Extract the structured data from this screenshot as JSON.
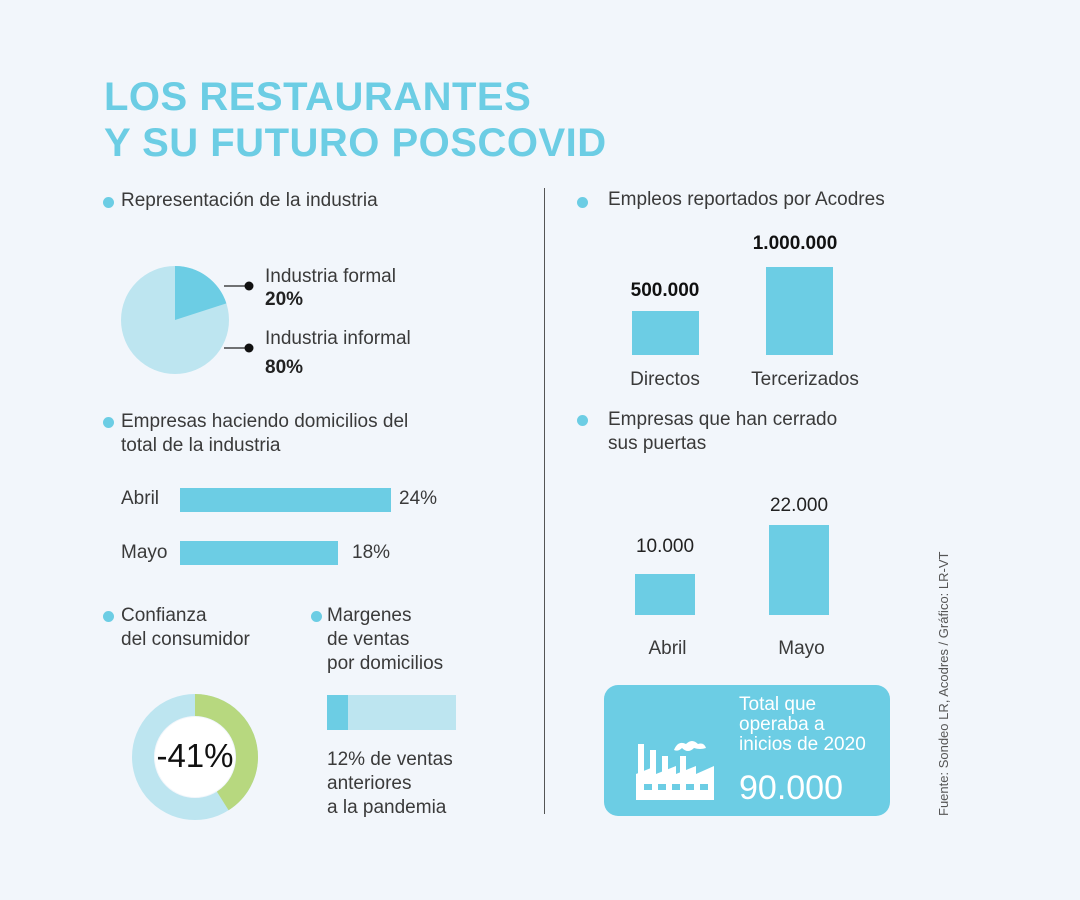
{
  "title": {
    "line1": "LOS RESTAURANTES",
    "line2": "Y SU FUTURO POSCOVID"
  },
  "colors": {
    "accent": "#6ccde4",
    "light_accent": "#bde5f0",
    "green": "#b7d87f",
    "background": "#f2f6fb"
  },
  "representation": {
    "title": "Representación de la industria",
    "items": [
      {
        "label": "Industria formal",
        "value": "20%"
      },
      {
        "label": "Industria informal",
        "value": "80%"
      }
    ]
  },
  "domicilios": {
    "title_line1": "Empresas haciendo domicilios del",
    "title_line2": "total de la industria",
    "rows": [
      {
        "label": "Abril",
        "value": "24%"
      },
      {
        "label": "Mayo",
        "value": "18%"
      }
    ]
  },
  "confianza": {
    "title_line1": "Confianza",
    "title_line2": "del consumidor",
    "value": "-41%"
  },
  "margenes": {
    "title_line1": "Margenes",
    "title_line2": "de ventas",
    "title_line3": "por domicilios",
    "note_line1": "12% de ventas",
    "note_line2": "anteriores",
    "note_line3": "a la pandemia"
  },
  "empleos": {
    "title": "Empleos reportados por Acodres",
    "bars": [
      {
        "label": "Directos",
        "value": "500.000"
      },
      {
        "label": "Tercerizados",
        "value": "1.000.000"
      }
    ]
  },
  "cerradas": {
    "title_line1": "Empresas que han cerrado",
    "title_line2": "sus puertas",
    "bars": [
      {
        "label": "Abril",
        "value": "10.000"
      },
      {
        "label": "Mayo",
        "value": "22.000"
      }
    ]
  },
  "total": {
    "label_line1": "Total que",
    "label_line2": "operaba a",
    "label_line3": "inicios de 2020",
    "value": "90.000",
    "icon": "factory-icon"
  },
  "source": "Fuente: Sondeo LR, Acodres   / Gráfico: LR-VT",
  "chart_data": [
    {
      "type": "pie",
      "title": "Representación de la industria",
      "categories": [
        "Industria formal",
        "Industria informal"
      ],
      "values": [
        20,
        80
      ]
    },
    {
      "type": "bar",
      "title": "Empresas haciendo domicilios del total de la industria",
      "categories": [
        "Abril",
        "Mayo"
      ],
      "values": [
        24,
        18
      ]
    },
    {
      "type": "pie",
      "title": "Confianza del consumidor",
      "values": [
        41
      ],
      "labels": [
        "-41%"
      ]
    },
    {
      "type": "bar",
      "title": "Margenes de ventas por domicilios",
      "categories": [
        "12% de ventas anteriores a la pandemia"
      ],
      "values": [
        12
      ],
      "ylim": [
        0,
        100
      ]
    },
    {
      "type": "bar",
      "title": "Empleos reportados por Acodres",
      "categories": [
        "Directos",
        "Tercerizados"
      ],
      "values": [
        500000,
        1000000
      ]
    },
    {
      "type": "bar",
      "title": "Empresas que han cerrado sus puertas",
      "categories": [
        "Abril",
        "Mayo"
      ],
      "values": [
        10000,
        22000
      ]
    }
  ]
}
